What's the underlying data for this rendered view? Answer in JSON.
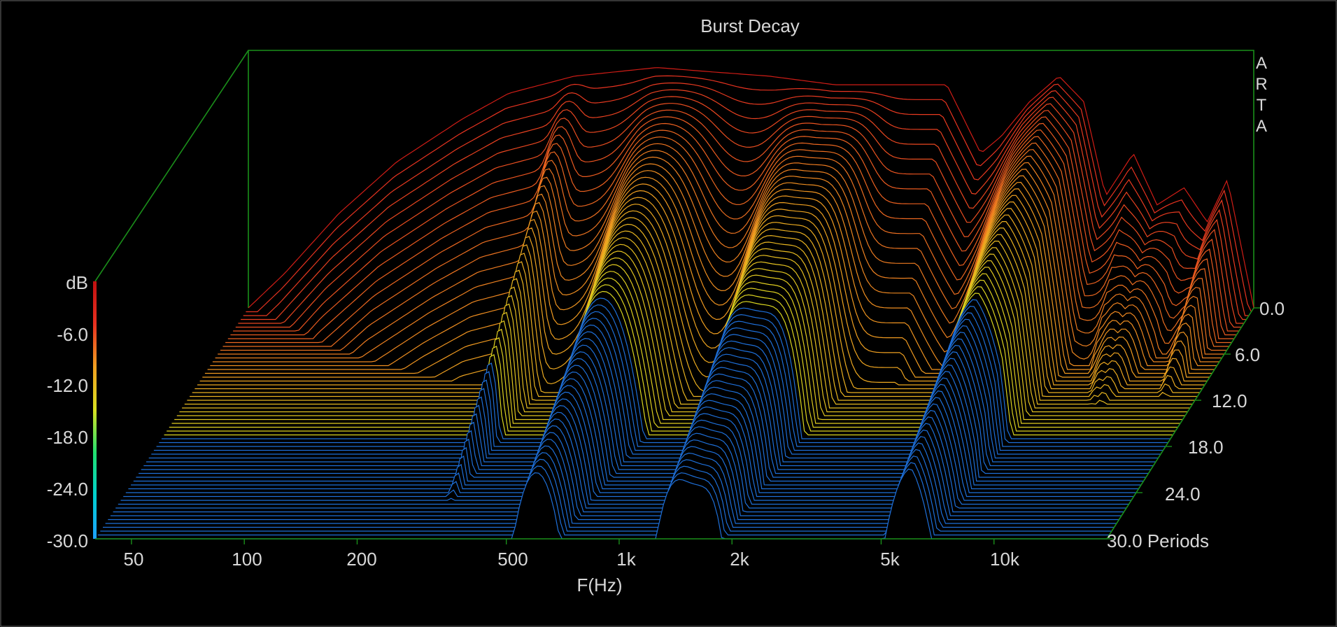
{
  "chart_data": {
    "type": "waterfall",
    "title": "Burst Decay",
    "watermark": [
      "A",
      "R",
      "T",
      "A"
    ],
    "xlabel": "F(Hz)",
    "x_scale": "log",
    "xlim": [
      40,
      20000
    ],
    "x_ticks": [
      {
        "value": 50,
        "label": "50"
      },
      {
        "value": 100,
        "label": "100"
      },
      {
        "value": 200,
        "label": "200"
      },
      {
        "value": 500,
        "label": "500"
      },
      {
        "value": 1000,
        "label": "1k"
      },
      {
        "value": 2000,
        "label": "2k"
      },
      {
        "value": 5000,
        "label": "5k"
      },
      {
        "value": 10000,
        "label": "10k"
      }
    ],
    "zlabel": "dB",
    "zlim": [
      -30,
      0
    ],
    "z_ticks": [
      "-6.0",
      "-12.0",
      "-18.0",
      "-24.0",
      "-30.0"
    ],
    "z_tick_values": [
      -6,
      -12,
      -18,
      -24,
      -30
    ],
    "ylabel": "Periods",
    "ylim": [
      0,
      30
    ],
    "y_ticks": [
      "0.0",
      "6.0",
      "12.0",
      "18.0",
      "24.0",
      "30.0"
    ],
    "y_tick_values": [
      0,
      6,
      12,
      18,
      24,
      30
    ],
    "y_unit_label": "30.0 Periods",
    "slice_count": 61,
    "front_slice_level": [
      {
        "f": 40,
        "db": -30
      },
      {
        "f": 50,
        "db": -26
      },
      {
        "f": 70,
        "db": -19
      },
      {
        "f": 100,
        "db": -13
      },
      {
        "f": 150,
        "db": -8
      },
      {
        "f": 200,
        "db": -5
      },
      {
        "f": 300,
        "db": -3
      },
      {
        "f": 500,
        "db": -2
      },
      {
        "f": 700,
        "db": -2.5
      },
      {
        "f": 1000,
        "db": -3
      },
      {
        "f": 1500,
        "db": -4
      },
      {
        "f": 2000,
        "db": -4
      },
      {
        "f": 3000,
        "db": -4
      },
      {
        "f": 3700,
        "db": -12
      },
      {
        "f": 4200,
        "db": -10
      },
      {
        "f": 5000,
        "db": -6
      },
      {
        "f": 6000,
        "db": -3
      },
      {
        "f": 7000,
        "db": -6
      },
      {
        "f": 8000,
        "db": -17
      },
      {
        "f": 9500,
        "db": -12
      },
      {
        "f": 11000,
        "db": -18
      },
      {
        "f": 13000,
        "db": -16
      },
      {
        "f": 15000,
        "db": -20
      },
      {
        "f": 17000,
        "db": -15
      },
      {
        "f": 20000,
        "db": -30
      }
    ],
    "colorbar": [
      "#1ea0ff",
      "#00d0d0",
      "#20e070",
      "#d8e020",
      "#f0a020",
      "#e83020",
      "#c01010"
    ]
  }
}
